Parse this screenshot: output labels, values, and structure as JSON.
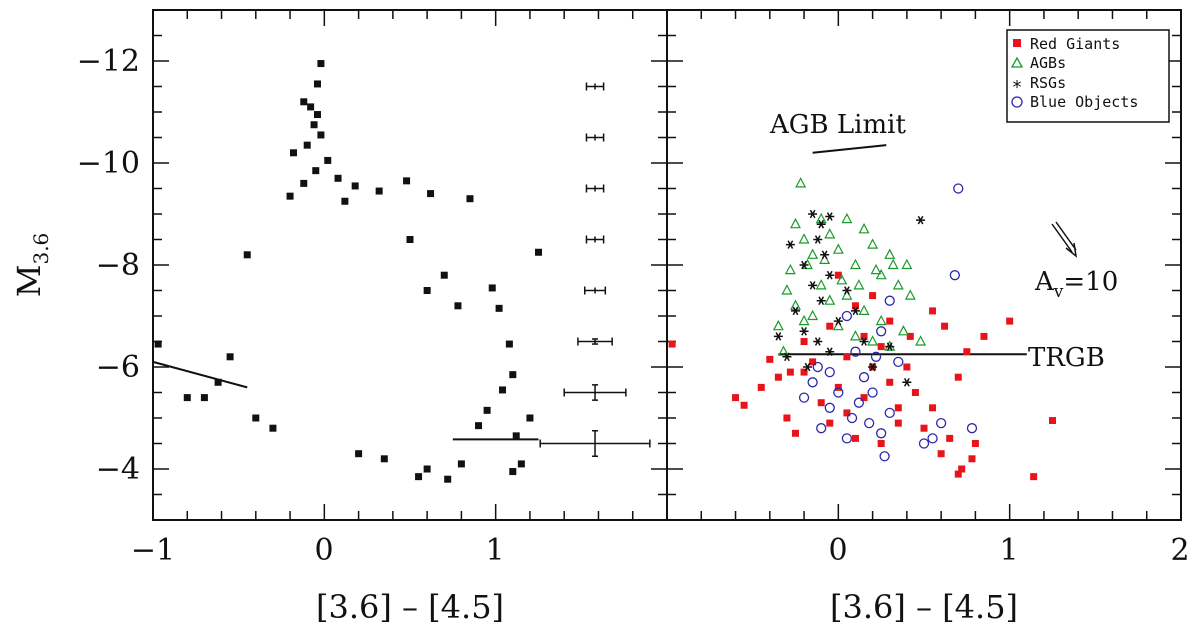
{
  "chart_data": [
    {
      "type": "scatter",
      "panel": "left",
      "xlabel": "[3.6] – [4.5]",
      "ylabel_main": "M",
      "ylabel_sub": "3.6",
      "xlim": [
        -1,
        2
      ],
      "ylim": [
        -3,
        -13
      ],
      "x_ticks": [
        "−1",
        "0",
        "1"
      ],
      "y_ticks": [
        "−12",
        "−10",
        "−8",
        "−6",
        "−4"
      ],
      "series": [
        {
          "color": "#111111",
          "marker": "square",
          "points": [
            [
              -0.02,
              -11.95
            ],
            [
              -0.04,
              -11.55
            ],
            [
              -0.12,
              -11.2
            ],
            [
              -0.08,
              -11.1
            ],
            [
              -0.04,
              -10.95
            ],
            [
              -0.06,
              -10.75
            ],
            [
              -0.02,
              -10.55
            ],
            [
              -0.1,
              -10.35
            ],
            [
              -0.18,
              -10.2
            ],
            [
              0.02,
              -10.05
            ],
            [
              -0.05,
              -9.85
            ],
            [
              -0.12,
              -9.6
            ],
            [
              0.08,
              -9.7
            ],
            [
              0.18,
              -9.55
            ],
            [
              0.32,
              -9.45
            ],
            [
              0.48,
              -9.65
            ],
            [
              0.62,
              -9.4
            ],
            [
              0.85,
              -9.3
            ],
            [
              -0.2,
              -9.35
            ],
            [
              0.12,
              -9.25
            ],
            [
              -0.45,
              -8.2
            ],
            [
              -0.55,
              -6.2
            ],
            [
              -0.62,
              -5.7
            ],
            [
              -0.7,
              -5.4
            ],
            [
              -0.8,
              -5.4
            ],
            [
              -0.97,
              -6.45
            ],
            [
              0.98,
              -7.55
            ],
            [
              1.02,
              -7.15
            ],
            [
              1.08,
              -6.45
            ],
            [
              1.1,
              -5.85
            ],
            [
              1.04,
              -5.55
            ],
            [
              0.95,
              -5.15
            ],
            [
              0.9,
              -4.85
            ],
            [
              1.12,
              -4.65
            ],
            [
              1.15,
              -4.1
            ],
            [
              1.1,
              -3.95
            ],
            [
              0.72,
              -3.8
            ],
            [
              0.55,
              -3.85
            ],
            [
              1.25,
              -8.25
            ],
            [
              1.2,
              -5.0
            ],
            [
              -0.3,
              -4.8
            ],
            [
              -0.4,
              -5.0
            ],
            [
              0.2,
              -4.3
            ],
            [
              0.35,
              -4.2
            ],
            [
              0.6,
              -4.0
            ],
            [
              0.8,
              -4.1
            ],
            [
              0.7,
              -7.8
            ],
            [
              0.78,
              -7.2
            ],
            [
              0.6,
              -7.5
            ],
            [
              0.5,
              -8.5
            ]
          ]
        },
        {
          "color": "#111111",
          "marker": "errorbar",
          "points": [
            [
              1.58,
              -11.5,
              0.05,
              0.0
            ],
            [
              1.58,
              -10.5,
              0.05,
              0.0
            ],
            [
              1.58,
              -9.5,
              0.05,
              0.0
            ],
            [
              1.58,
              -8.5,
              0.05,
              0.0
            ],
            [
              1.58,
              -7.5,
              0.06,
              0.0
            ],
            [
              1.58,
              -6.5,
              0.1,
              0.05
            ],
            [
              1.58,
              -5.5,
              0.18,
              0.15
            ],
            [
              1.58,
              -4.5,
              0.32,
              0.25
            ]
          ]
        }
      ],
      "lines": [
        [
          [
            -1.0,
            -6.1
          ],
          [
            -0.45,
            -5.6
          ]
        ],
        [
          [
            0.75,
            -4.58
          ],
          [
            1.25,
            -4.58
          ]
        ]
      ]
    },
    {
      "type": "scatter",
      "panel": "right",
      "xlabel": "[3.6] – [4.5]",
      "xlim": [
        -1,
        2
      ],
      "ylim": [
        -3,
        -13
      ],
      "x_ticks": [
        "0",
        "1",
        "2"
      ],
      "series": [
        {
          "name": "Red Giants",
          "color": "#e8141b",
          "marker": "square",
          "points": [
            [
              -0.97,
              -6.45
            ],
            [
              -0.6,
              -5.4
            ],
            [
              -0.55,
              -5.25
            ],
            [
              -0.45,
              -5.6
            ],
            [
              -0.4,
              -6.15
            ],
            [
              -0.35,
              -5.8
            ],
            [
              -0.3,
              -5.0
            ],
            [
              -0.25,
              -4.7
            ],
            [
              -0.2,
              -5.9
            ],
            [
              -0.15,
              -6.1
            ],
            [
              -0.1,
              -5.3
            ],
            [
              -0.05,
              -4.9
            ],
            [
              0.0,
              -5.6
            ],
            [
              0.05,
              -5.1
            ],
            [
              0.1,
              -4.6
            ],
            [
              0.15,
              -5.4
            ],
            [
              0.2,
              -6.0
            ],
            [
              0.25,
              -4.5
            ],
            [
              0.3,
              -5.7
            ],
            [
              0.35,
              -4.9
            ],
            [
              0.4,
              -6.0
            ],
            [
              0.45,
              -5.5
            ],
            [
              0.5,
              -4.8
            ],
            [
              0.55,
              -5.2
            ],
            [
              0.6,
              -4.3
            ],
            [
              0.65,
              -4.6
            ],
            [
              0.7,
              -5.8
            ],
            [
              0.75,
              -6.3
            ],
            [
              0.8,
              -4.5
            ],
            [
              0.85,
              -6.6
            ],
            [
              0.62,
              -6.8
            ],
            [
              0.55,
              -7.1
            ],
            [
              0.72,
              -4.0
            ],
            [
              0.7,
              -3.9
            ],
            [
              0.78,
              -4.2
            ],
            [
              1.0,
              -6.9
            ],
            [
              1.14,
              -3.85
            ],
            [
              1.25,
              -4.95
            ],
            [
              0.1,
              -7.2
            ],
            [
              0.0,
              -7.8
            ],
            [
              0.2,
              -7.4
            ],
            [
              0.15,
              -6.6
            ],
            [
              -0.05,
              -6.8
            ],
            [
              0.3,
              -6.9
            ],
            [
              0.42,
              -6.6
            ],
            [
              -0.2,
              -6.5
            ],
            [
              -0.28,
              -5.9
            ],
            [
              0.05,
              -6.2
            ],
            [
              0.25,
              -6.4
            ],
            [
              0.35,
              -5.2
            ]
          ]
        },
        {
          "name": "AGBs",
          "color": "#1a9a2a",
          "marker": "triangle",
          "points": [
            [
              -0.22,
              -9.6
            ],
            [
              -0.25,
              -8.8
            ],
            [
              -0.2,
              -8.5
            ],
            [
              -0.15,
              -8.2
            ],
            [
              -0.1,
              -8.9
            ],
            [
              -0.05,
              -8.6
            ],
            [
              0.0,
              -8.3
            ],
            [
              0.05,
              -8.9
            ],
            [
              0.1,
              -8.0
            ],
            [
              0.15,
              -8.7
            ],
            [
              0.2,
              -8.4
            ],
            [
              0.25,
              -7.8
            ],
            [
              0.3,
              -8.2
            ],
            [
              0.35,
              -7.6
            ],
            [
              0.4,
              -8.0
            ],
            [
              -0.3,
              -7.5
            ],
            [
              -0.25,
              -7.2
            ],
            [
              -0.2,
              -6.9
            ],
            [
              -0.15,
              -7.0
            ],
            [
              -0.1,
              -7.6
            ],
            [
              -0.05,
              -7.3
            ],
            [
              0.0,
              -6.8
            ],
            [
              0.05,
              -7.4
            ],
            [
              0.1,
              -6.6
            ],
            [
              0.15,
              -7.1
            ],
            [
              0.2,
              -6.5
            ],
            [
              0.25,
              -6.9
            ],
            [
              0.3,
              -6.4
            ],
            [
              0.38,
              -6.7
            ],
            [
              0.48,
              -6.5
            ],
            [
              -0.35,
              -6.8
            ],
            [
              -0.32,
              -6.3
            ],
            [
              -0.28,
              -7.9
            ],
            [
              -0.18,
              -8.0
            ],
            [
              -0.08,
              -8.1
            ],
            [
              0.02,
              -7.7
            ],
            [
              0.12,
              -7.6
            ],
            [
              0.22,
              -7.9
            ],
            [
              0.32,
              -8.0
            ],
            [
              0.42,
              -7.4
            ]
          ]
        },
        {
          "name": "RSGs",
          "color": "#111111",
          "marker": "star",
          "points": [
            [
              -0.15,
              -9.0
            ],
            [
              -0.1,
              -8.8
            ],
            [
              -0.05,
              -8.95
            ],
            [
              -0.12,
              -8.5
            ],
            [
              -0.08,
              -8.2
            ],
            [
              -0.2,
              -8.0
            ],
            [
              -0.15,
              -7.6
            ],
            [
              -0.1,
              -7.3
            ],
            [
              -0.05,
              -7.8
            ],
            [
              -0.25,
              -7.1
            ],
            [
              -0.2,
              -6.7
            ],
            [
              -0.12,
              -6.5
            ],
            [
              -0.05,
              -6.3
            ],
            [
              0.0,
              -6.9
            ],
            [
              0.05,
              -7.5
            ],
            [
              0.1,
              -7.1
            ],
            [
              -0.3,
              -6.2
            ],
            [
              -0.35,
              -6.6
            ],
            [
              0.15,
              -6.5
            ],
            [
              0.48,
              -8.88
            ],
            [
              0.3,
              -6.4
            ],
            [
              0.4,
              -5.7
            ],
            [
              0.2,
              -6.0
            ],
            [
              -0.18,
              -6.0
            ],
            [
              -0.28,
              -8.4
            ]
          ]
        },
        {
          "name": "Blue Objects",
          "color": "#2a2aa8",
          "marker": "circle",
          "points": [
            [
              0.7,
              -9.5
            ],
            [
              0.68,
              -7.8
            ],
            [
              0.05,
              -7.0
            ],
            [
              0.25,
              -6.7
            ],
            [
              0.3,
              -7.3
            ],
            [
              0.1,
              -6.3
            ],
            [
              0.15,
              -5.8
            ],
            [
              0.0,
              -5.5
            ],
            [
              -0.05,
              -5.2
            ],
            [
              0.08,
              -5.0
            ],
            [
              -0.1,
              -4.8
            ],
            [
              0.05,
              -4.6
            ],
            [
              0.12,
              -5.3
            ],
            [
              0.2,
              -5.5
            ],
            [
              0.25,
              -4.7
            ],
            [
              0.3,
              -5.1
            ],
            [
              0.18,
              -4.9
            ],
            [
              -0.2,
              -5.4
            ],
            [
              -0.15,
              -5.7
            ],
            [
              0.35,
              -6.1
            ],
            [
              0.27,
              -4.25
            ],
            [
              0.55,
              -4.6
            ],
            [
              0.6,
              -4.9
            ],
            [
              0.78,
              -4.8
            ],
            [
              0.5,
              -4.5
            ],
            [
              -0.05,
              -5.9
            ],
            [
              0.22,
              -6.2
            ],
            [
              -0.12,
              -6.0
            ]
          ]
        }
      ],
      "lines": [
        [
          [
            -0.35,
            -6.25
          ],
          [
            1.1,
            -6.25
          ]
        ],
        [
          [
            -0.15,
            -10.2
          ],
          [
            0.28,
            -10.35
          ]
        ]
      ],
      "annotations": {
        "agb_limit": "AGB Limit",
        "trgb": "TRGB",
        "av_main": "A",
        "av_sub": "v",
        "av_value": "=10"
      }
    }
  ]
}
